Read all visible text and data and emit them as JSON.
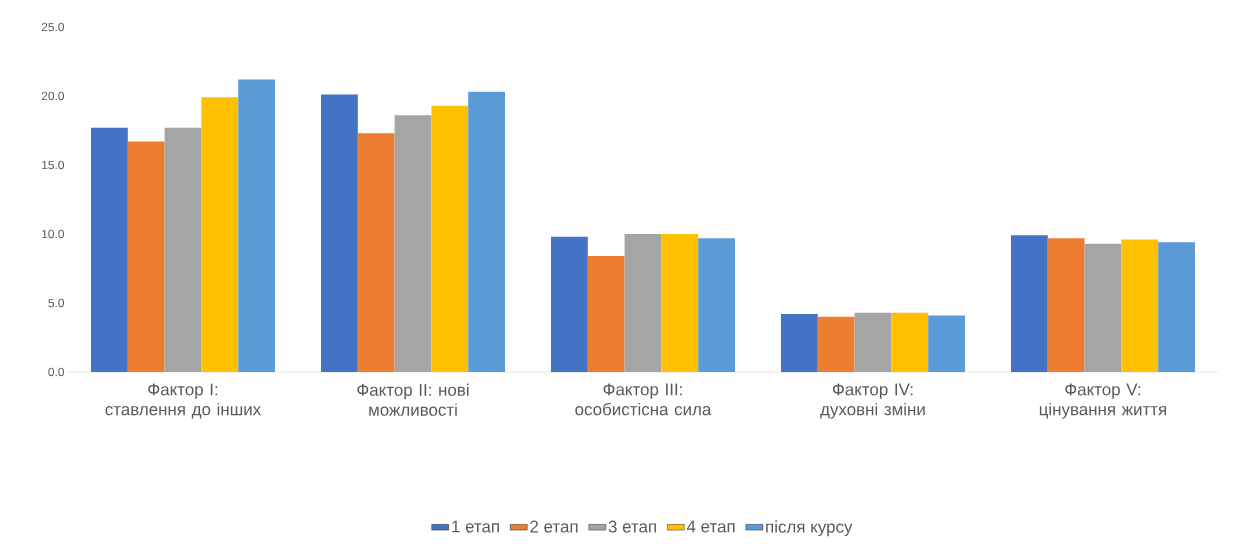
{
  "chart_data": {
    "type": "bar",
    "categories": [
      "Фактор I: ставлення до інших",
      "Фактор II: нові можливості",
      "Фактор III: особистісна сила",
      "Фактор IV: духовні зміни",
      "Фактор V: цінування життя"
    ],
    "series": [
      {
        "name": "1 етап",
        "color": "#4472c4",
        "values": [
          17.7,
          20.1,
          9.8,
          4.2,
          9.9
        ]
      },
      {
        "name": "2 етап",
        "color": "#ed7d31",
        "values": [
          16.7,
          17.3,
          8.4,
          4.0,
          9.7
        ]
      },
      {
        "name": "3 етап",
        "color": "#a5a5a5",
        "values": [
          17.7,
          18.6,
          10.0,
          4.3,
          9.3
        ]
      },
      {
        "name": "4 етап",
        "color": "#ffc000",
        "values": [
          19.9,
          19.3,
          10.0,
          4.3,
          9.6
        ]
      },
      {
        "name": "після курсу",
        "color": "#5b9bd5",
        "values": [
          21.2,
          20.3,
          9.7,
          4.1,
          9.4
        ]
      }
    ],
    "ylim": [
      0,
      25
    ],
    "yticks": [
      {
        "value": 0,
        "label": "0.0"
      },
      {
        "value": 5,
        "label": "5.0"
      },
      {
        "value": 10,
        "label": "10.0"
      },
      {
        "value": 15,
        "label": "15.0"
      },
      {
        "value": 20,
        "label": "20.0"
      },
      {
        "value": 25,
        "label": "25.0"
      }
    ],
    "legend": "bottom"
  }
}
